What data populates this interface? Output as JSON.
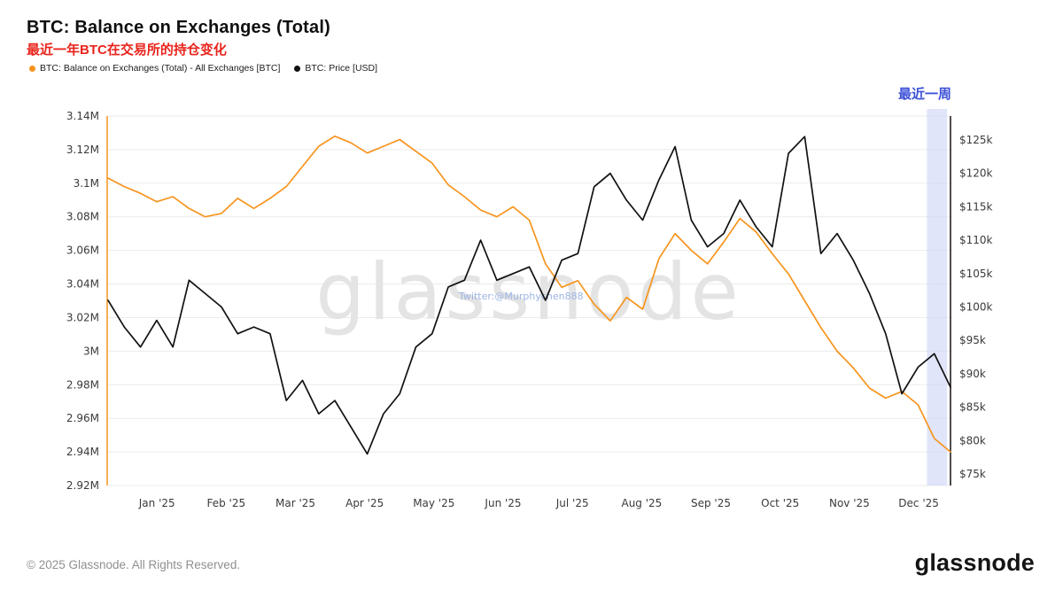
{
  "header": {
    "title": "BTC: Balance on Exchanges (Total)",
    "subtitle_zh": "最近一年BTC在交易所的持仓变化",
    "legend": [
      {
        "label": "BTC: Balance on Exchanges (Total) - All Exchanges [BTC]",
        "color": "#f7941d"
      },
      {
        "label": "BTC: Price [USD]",
        "color": "#111111"
      }
    ]
  },
  "chart_data": {
    "type": "line",
    "title": "BTC: Balance on Exchanges (Total)",
    "xlabel": "",
    "x_ticks": [
      "Jan '25",
      "Feb '25",
      "Mar '25",
      "Apr '25",
      "May '25",
      "Jun '25",
      "Jul '25",
      "Aug '25",
      "Sep '25",
      "Oct '25",
      "Nov '25",
      "Dec '25"
    ],
    "left_axis": {
      "unit": "BTC (millions)",
      "range": [
        2.92,
        3.14
      ],
      "values": [
        3.14,
        3.12,
        3.1,
        3.08,
        3.06,
        3.04,
        3.02,
        3.0,
        2.98,
        2.96,
        2.94,
        2.92
      ],
      "ticks": [
        "3.14M",
        "3.12M",
        "3.1M",
        "3.08M",
        "3.06M",
        "3.04M",
        "3.02M",
        "3M",
        "2.98M",
        "2.96M",
        "2.94M",
        "2.92M"
      ]
    },
    "right_axis": {
      "unit": "USD (thousands)",
      "range": [
        75,
        125
      ],
      "values": [
        125,
        120,
        115,
        110,
        105,
        100,
        95,
        90,
        85,
        80,
        75
      ],
      "ticks": [
        "$125k",
        "$120k",
        "$115k",
        "$110k",
        "$105k",
        "$100k",
        "$95k",
        "$90k",
        "$85k",
        "$80k",
        "$75k"
      ]
    },
    "series": [
      {
        "name": "BTC: Balance on Exchanges (Total) - All Exchanges [BTC]",
        "axis": "left",
        "color": "#f7941d",
        "unit": "M BTC",
        "values": [
          3.103,
          3.098,
          3.094,
          3.089,
          3.092,
          3.085,
          3.08,
          3.082,
          3.091,
          3.085,
          3.091,
          3.098,
          3.11,
          3.122,
          3.128,
          3.124,
          3.118,
          3.122,
          3.126,
          3.119,
          3.112,
          3.099,
          3.092,
          3.084,
          3.08,
          3.086,
          3.078,
          3.052,
          3.038,
          3.042,
          3.028,
          3.018,
          3.032,
          3.025,
          3.055,
          3.07,
          3.06,
          3.052,
          3.065,
          3.079,
          3.071,
          3.058,
          3.046,
          3.03,
          3.014,
          3.0,
          2.99,
          2.978,
          2.972,
          2.976,
          2.968,
          2.948,
          2.94
        ]
      },
      {
        "name": "BTC: Price [USD]",
        "axis": "right",
        "color": "#111111",
        "unit": "k USD",
        "values": [
          101,
          97,
          94,
          98,
          94,
          104,
          102,
          100,
          96,
          97,
          96,
          86,
          89,
          84,
          86,
          82,
          78,
          84,
          87,
          94,
          96,
          103,
          104,
          110,
          104,
          105,
          106,
          101,
          107,
          108,
          118,
          120,
          116,
          113,
          119,
          124,
          113,
          109,
          111,
          116,
          112,
          109,
          123,
          125.5,
          108,
          111,
          107,
          102,
          96,
          87,
          91,
          93,
          88
        ]
      }
    ],
    "highlight": {
      "label": "最近一周",
      "start_frac": 0.972,
      "end_frac": 0.996,
      "color": "#ccd4f6"
    },
    "grid": "horizontal",
    "legend_position": "top-left"
  },
  "watermark": {
    "text": "glassnode",
    "subtext": "Twitter:@Murphychen888"
  },
  "footer": {
    "copyright": "© 2025 Glassnode. All Rights Reserved.",
    "brand": "glassnode"
  }
}
